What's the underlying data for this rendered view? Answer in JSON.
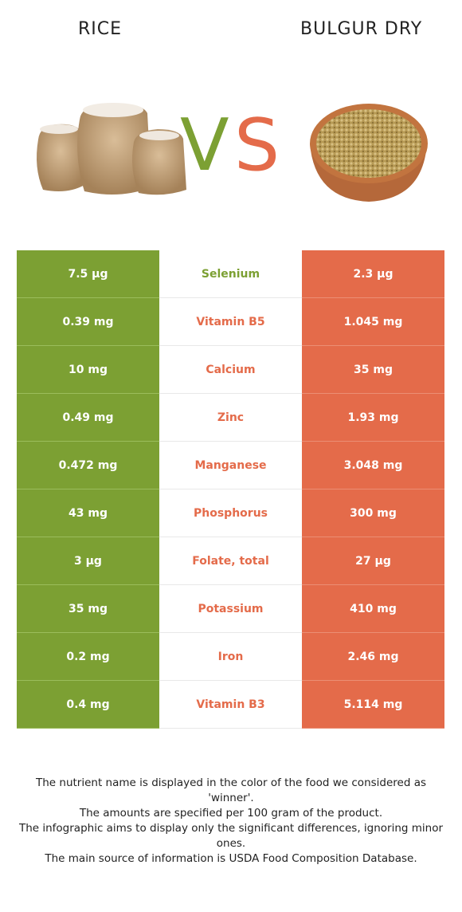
{
  "header": {
    "left_food": "RICE",
    "right_food": "BULGUR DRY",
    "vs_v": "V",
    "vs_s": "S"
  },
  "colors": {
    "left_winner": "#7ca033",
    "right_winner": "#e46b4a"
  },
  "images": {
    "left": "rice-sacks-image",
    "right": "bulgur-bowl-image"
  },
  "rows": [
    {
      "left": "7.5 µg",
      "nutrient": "Selenium",
      "right": "2.3 µg",
      "winner": "left"
    },
    {
      "left": "0.39 mg",
      "nutrient": "Vitamin B5",
      "right": "1.045 mg",
      "winner": "right"
    },
    {
      "left": "10 mg",
      "nutrient": "Calcium",
      "right": "35 mg",
      "winner": "right"
    },
    {
      "left": "0.49 mg",
      "nutrient": "Zinc",
      "right": "1.93 mg",
      "winner": "right"
    },
    {
      "left": "0.472 mg",
      "nutrient": "Manganese",
      "right": "3.048 mg",
      "winner": "right"
    },
    {
      "left": "43 mg",
      "nutrient": "Phosphorus",
      "right": "300 mg",
      "winner": "right"
    },
    {
      "left": "3 µg",
      "nutrient": "Folate, total",
      "right": "27 µg",
      "winner": "right"
    },
    {
      "left": "35 mg",
      "nutrient": "Potassium",
      "right": "410 mg",
      "winner": "right"
    },
    {
      "left": "0.2 mg",
      "nutrient": "Iron",
      "right": "2.46 mg",
      "winner": "right"
    },
    {
      "left": "0.4 mg",
      "nutrient": "Vitamin B3",
      "right": "5.114 mg",
      "winner": "right"
    }
  ],
  "footnote": {
    "line1": "The nutrient name is displayed in the color of the food we considered as 'winner'.",
    "line2": "The amounts are specified per 100 gram of the product.",
    "line3": "The infographic aims to display only the significant differences, ignoring minor ones.",
    "line4": "The main source of information is USDA Food Composition Database."
  }
}
